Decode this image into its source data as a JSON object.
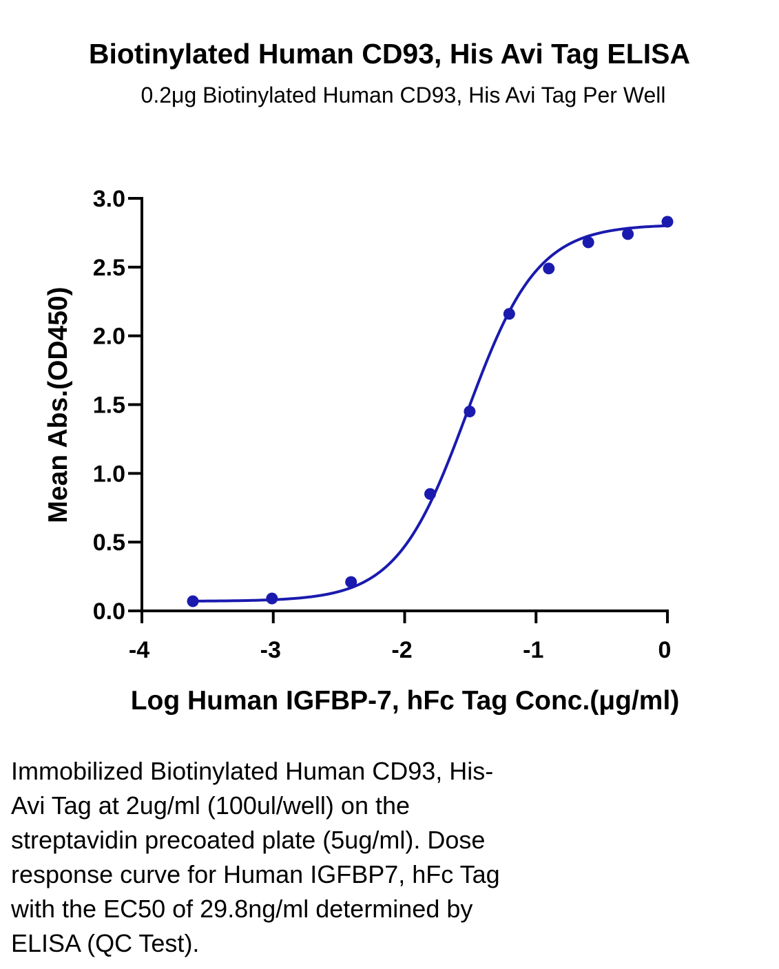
{
  "chart_data": {
    "type": "scatter",
    "title": "Biotinylated Human CD93, His Avi Tag ELISA",
    "subtitle": "0.2μg Biotinylated Human CD93, His Avi Tag Per Well",
    "xlabel": "Log Human IGFBP-7, hFc Tag Conc.(μg/ml)",
    "ylabel": "Mean Abs.(OD450)",
    "xlim": [
      -4,
      0
    ],
    "ylim": [
      0,
      3.0
    ],
    "x_ticks": [
      "-4",
      "-3",
      "-2",
      "-1",
      "0"
    ],
    "y_ticks": [
      "0.0",
      "0.5",
      "1.0",
      "1.5",
      "2.0",
      "2.5",
      "3.0"
    ],
    "grid": false,
    "series": [
      {
        "x": [
          -3.612,
          -3.01,
          -2.408,
          -1.806,
          -1.505,
          -1.204,
          -0.903,
          -0.602,
          -0.301,
          0.0
        ],
        "y": [
          0.07,
          0.09,
          0.21,
          0.85,
          1.45,
          2.16,
          2.49,
          2.68,
          2.74,
          2.83
        ],
        "color": "#1a1aaf",
        "fit_curve": {
          "model": "4PL",
          "bottom": 0.07,
          "top": 2.81,
          "logEC50": -1.526,
          "hill": 1.62
        }
      }
    ]
  },
  "caption": {
    "lines": [
      "Immobilized Biotinylated Human CD93, His-",
      "Avi Tag at 2ug/ml (100ul/well) on the",
      "streptavidin precoated plate (5ug/ml). Dose",
      "response curve for Human IGFBP7, hFc Tag",
      "with the EC50 of 29.8ng/ml determined by",
      "ELISA (QC Test)."
    ]
  }
}
